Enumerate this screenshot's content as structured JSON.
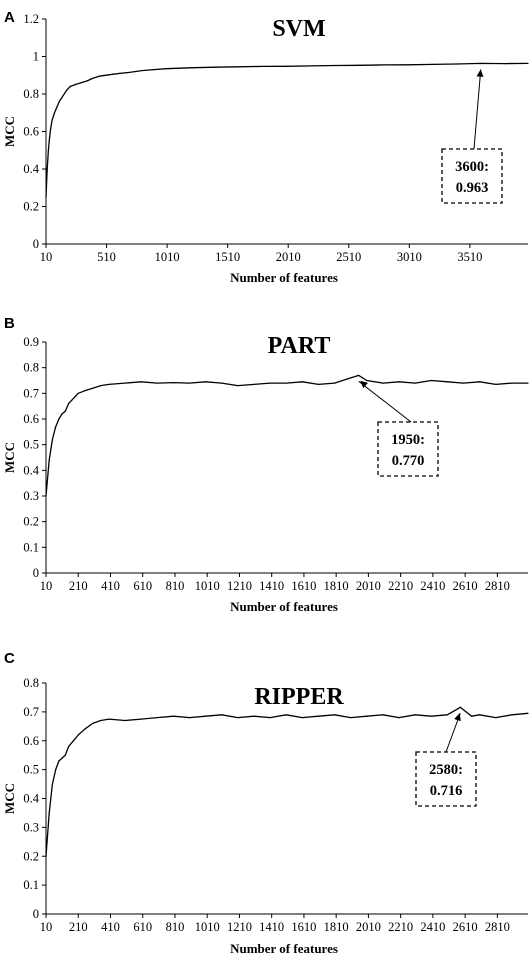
{
  "chart_data": [
    {
      "panel": "A",
      "type": "line",
      "title": "SVM",
      "xlabel": "Number of features",
      "ylabel": "MCC",
      "ylim": [
        0,
        1.2
      ],
      "yticks": [
        "0",
        "0.2",
        "0.4",
        "0.6",
        "0.8",
        "1",
        "1.2"
      ],
      "xlim": [
        10,
        3990
      ],
      "xticks": [
        "10",
        "510",
        "1010",
        "1510",
        "2010",
        "2510",
        "3010",
        "3510"
      ],
      "grid": false,
      "series": [
        {
          "x": [
            10,
            20,
            30,
            40,
            50,
            60,
            80,
            100,
            120,
            150,
            180,
            210,
            250,
            300,
            350,
            400,
            450,
            500,
            560,
            620,
            700,
            800,
            900,
            1000,
            1200,
            1400,
            1600,
            1800,
            2000,
            2200,
            2400,
            2600,
            2800,
            3000,
            3200,
            3400,
            3600,
            3800,
            3990
          ],
          "y": [
            0.25,
            0.4,
            0.5,
            0.57,
            0.62,
            0.66,
            0.7,
            0.73,
            0.76,
            0.79,
            0.82,
            0.84,
            0.85,
            0.86,
            0.87,
            0.885,
            0.895,
            0.9,
            0.905,
            0.91,
            0.915,
            0.925,
            0.93,
            0.935,
            0.94,
            0.943,
            0.945,
            0.947,
            0.948,
            0.95,
            0.952,
            0.953,
            0.955,
            0.956,
            0.958,
            0.96,
            0.963,
            0.962,
            0.963
          ]
        }
      ],
      "annotation": {
        "line1": "3600:",
        "line2": "0.963",
        "x": 3600,
        "y": 0.963
      }
    },
    {
      "panel": "B",
      "type": "line",
      "title": "PART",
      "xlabel": "Number of features",
      "ylabel": "MCC",
      "ylim": [
        0,
        0.9
      ],
      "yticks": [
        "0",
        "0.1",
        "0.2",
        "0.3",
        "0.4",
        "0.5",
        "0.6",
        "0.7",
        "0.8",
        "0.9"
      ],
      "xlim": [
        10,
        3000
      ],
      "xticks": [
        "10",
        "210",
        "410",
        "610",
        "810",
        "1010",
        "1210",
        "1410",
        "1610",
        "1810",
        "2010",
        "2210",
        "2410",
        "2610",
        "2810"
      ],
      "grid": false,
      "series": [
        {
          "x": [
            10,
            30,
            50,
            70,
            90,
            110,
            130,
            150,
            180,
            210,
            250,
            300,
            350,
            400,
            500,
            600,
            700,
            800,
            900,
            1000,
            1100,
            1200,
            1300,
            1400,
            1500,
            1600,
            1700,
            1800,
            1900,
            1950,
            2000,
            2100,
            2200,
            2300,
            2400,
            2500,
            2600,
            2700,
            2800,
            2900,
            3000
          ],
          "y": [
            0.3,
            0.44,
            0.52,
            0.57,
            0.6,
            0.62,
            0.63,
            0.66,
            0.68,
            0.7,
            0.71,
            0.72,
            0.73,
            0.735,
            0.74,
            0.745,
            0.74,
            0.742,
            0.74,
            0.745,
            0.74,
            0.73,
            0.735,
            0.74,
            0.74,
            0.745,
            0.735,
            0.74,
            0.76,
            0.77,
            0.75,
            0.74,
            0.745,
            0.74,
            0.75,
            0.745,
            0.74,
            0.745,
            0.735,
            0.74,
            0.74
          ]
        }
      ],
      "annotation": {
        "line1": "1950:",
        "line2": "0.770",
        "x": 1950,
        "y": 0.77
      }
    },
    {
      "panel": "C",
      "type": "line",
      "title": "RIPPER",
      "xlabel": "Number of features",
      "ylabel": "MCC",
      "ylim": [
        0,
        0.8
      ],
      "yticks": [
        "0",
        "0.1",
        "0.2",
        "0.3",
        "0.4",
        "0.5",
        "0.6",
        "0.7",
        "0.8"
      ],
      "xlim": [
        10,
        3000
      ],
      "xticks": [
        "10",
        "210",
        "410",
        "610",
        "810",
        "1010",
        "1210",
        "1410",
        "1610",
        "1810",
        "2010",
        "2210",
        "2410",
        "2610",
        "2810"
      ],
      "grid": false,
      "series": [
        {
          "x": [
            10,
            30,
            50,
            70,
            90,
            110,
            130,
            150,
            180,
            210,
            250,
            300,
            350,
            400,
            500,
            600,
            700,
            800,
            900,
            1000,
            1100,
            1200,
            1300,
            1400,
            1500,
            1600,
            1700,
            1800,
            1900,
            2000,
            2100,
            2200,
            2300,
            2400,
            2500,
            2580,
            2650,
            2700,
            2800,
            2900,
            3000
          ],
          "y": [
            0.2,
            0.35,
            0.45,
            0.5,
            0.53,
            0.54,
            0.55,
            0.58,
            0.6,
            0.62,
            0.64,
            0.66,
            0.67,
            0.675,
            0.67,
            0.675,
            0.68,
            0.685,
            0.68,
            0.685,
            0.69,
            0.68,
            0.685,
            0.68,
            0.69,
            0.68,
            0.685,
            0.69,
            0.68,
            0.685,
            0.69,
            0.68,
            0.69,
            0.685,
            0.69,
            0.716,
            0.685,
            0.69,
            0.68,
            0.69,
            0.695
          ]
        }
      ],
      "annotation": {
        "line1": "2580:",
        "line2": "0.716",
        "x": 2580,
        "y": 0.716
      }
    }
  ]
}
